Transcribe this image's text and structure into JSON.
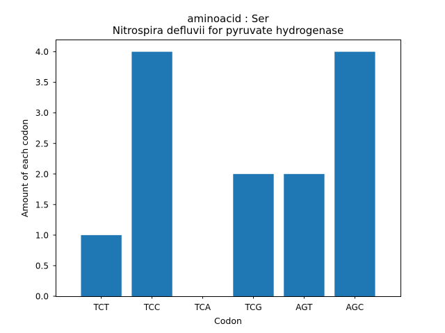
{
  "chart_data": {
    "type": "bar",
    "title": "aminoacid : Ser",
    "subtitle": "Nitrospira defluvii for pyruvate hydrogenase",
    "xlabel": "Codon",
    "ylabel": "Amount of each codon",
    "categories": [
      "TCT",
      "TCC",
      "TCA",
      "TCG",
      "AGT",
      "AGC"
    ],
    "values": [
      1,
      4,
      0,
      2,
      2,
      4
    ],
    "ylim": [
      0,
      4.2
    ],
    "yticks": [
      "0.0",
      "0.5",
      "1.0",
      "1.5",
      "2.0",
      "2.5",
      "3.0",
      "3.5",
      "4.0"
    ],
    "bar_color": "#1f77b4",
    "grid": false,
    "legend": "none"
  }
}
